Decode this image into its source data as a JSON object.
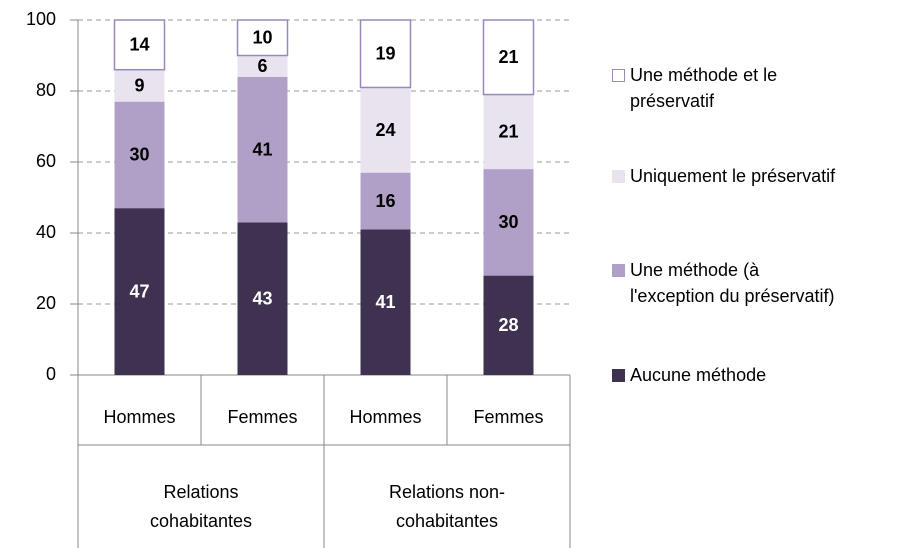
{
  "chart_data": {
    "type": "stacked_bar",
    "categories": [
      "Hommes",
      "Femmes",
      "Hommes",
      "Femmes"
    ],
    "groups": [
      {
        "label": "Relations\ncohabitantes",
        "span": 2
      },
      {
        "label": "Relations non-\ncohabitantes",
        "span": 2
      }
    ],
    "series": [
      {
        "name": "Aucune méthode",
        "color": "#3f3150",
        "values": [
          47,
          43,
          41,
          28
        ]
      },
      {
        "name": "Une méthode (à\nl'exception du préservatif)",
        "color": "#b0a0c8",
        "values": [
          30,
          41,
          16,
          30
        ]
      },
      {
        "name": "Uniquement le préservatif",
        "color": "#e8e3ee",
        "values": [
          9,
          6,
          24,
          21
        ]
      },
      {
        "name": "Une méthode et le\npréservatif",
        "color": "#ffffff",
        "edgecolor": "#9b88b9",
        "values": [
          14,
          10,
          19,
          21
        ]
      }
    ],
    "ylim": [
      0,
      100
    ],
    "yticks": [
      0,
      20,
      40,
      60,
      80,
      100
    ],
    "grid": true,
    "legend": "right"
  }
}
